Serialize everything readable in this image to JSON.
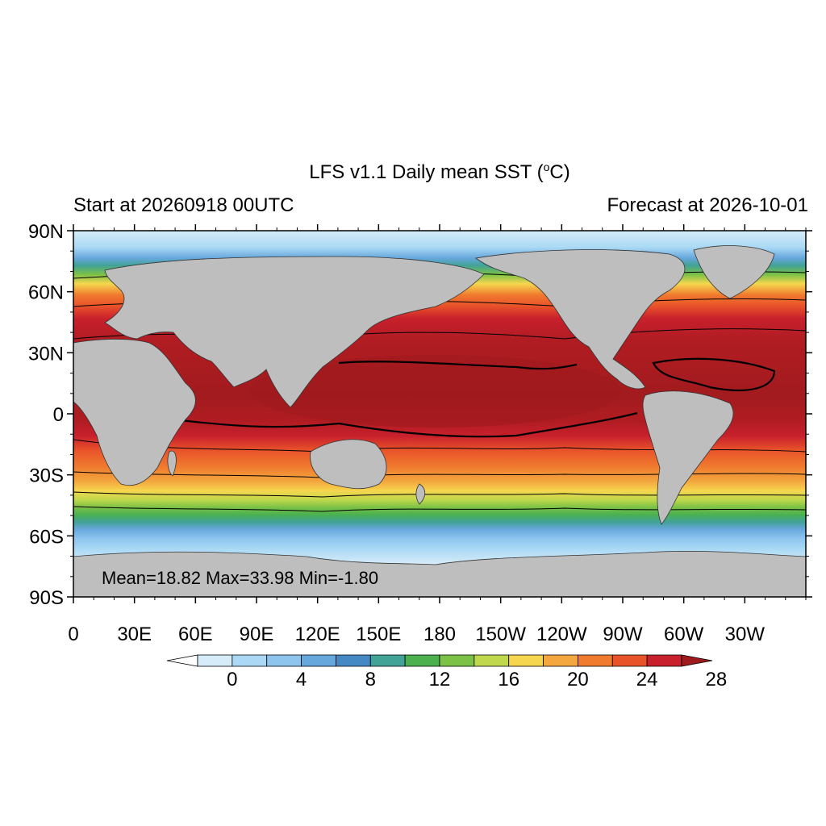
{
  "header": {
    "title_main": "LFS v1.1 Daily mean SST (",
    "title_sup": "o",
    "title_end": "C)",
    "left_subtitle": "Start at 20260918 00UTC",
    "right_subtitle": "Forecast at 2026-10-01"
  },
  "map": {
    "lat_labels": [
      "90N",
      "60N",
      "30N",
      "0",
      "30S",
      "60S",
      "90S"
    ],
    "lon_labels": [
      "0",
      "30E",
      "60E",
      "90E",
      "120E",
      "150E",
      "180",
      "150W",
      "120W",
      "90W",
      "60W",
      "30W"
    ],
    "stats": "Mean=18.82  Max=33.98  Min=-1.80",
    "land_color": "#bebebe",
    "ice_color": "#ffffff"
  },
  "colorbar": {
    "labels": [
      "0",
      "4",
      "8",
      "12",
      "16",
      "20",
      "24",
      "28"
    ],
    "colors": [
      "#ffffff",
      "#d6ecf8",
      "#abd9f5",
      "#8dc5ee",
      "#66a7dc",
      "#4489c4",
      "#41a296",
      "#4bb14f",
      "#7cc246",
      "#bfd84c",
      "#f6d64e",
      "#f3a73e",
      "#f07b2e",
      "#e9532a",
      "#c8202c",
      "#9e1a1d"
    ]
  }
}
